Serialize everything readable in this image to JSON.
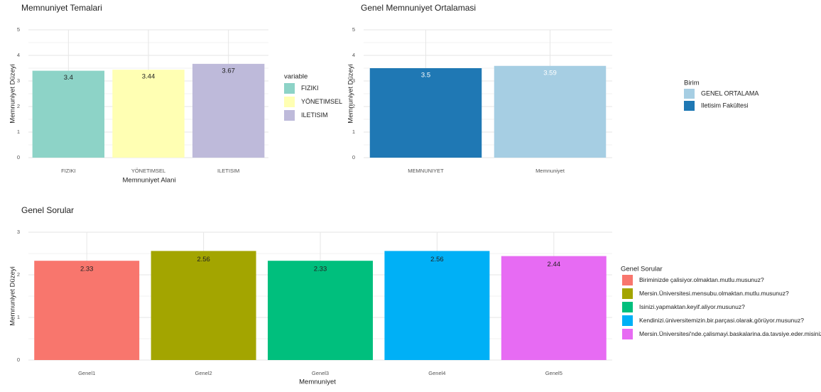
{
  "chart_data": [
    {
      "type": "bar",
      "title": "Memnuniyet Temalari",
      "xlabel": "Memnuniyet Alani",
      "ylabel": "Memnuniyet Düzeyi",
      "ylim": [
        0,
        5
      ],
      "yticks": [
        "0",
        "1",
        "2",
        "3",
        "4",
        "5"
      ],
      "grid": true,
      "categories": [
        "FIZIKI",
        "YÖNETIMSEL",
        "ILETISIM"
      ],
      "values": [
        3.4,
        3.44,
        3.67
      ],
      "value_labels": [
        "3.4",
        "3.44",
        "3.67"
      ],
      "colors": [
        "#8dd3c7",
        "#ffffb3",
        "#bebada"
      ],
      "label_colors": [
        "#222222",
        "#222222",
        "#222222"
      ],
      "legend": {
        "title": "variable",
        "placement": "right",
        "entries": [
          {
            "label": "FIZIKI",
            "color": "#8dd3c7"
          },
          {
            "label": "YÖNETIMSEL",
            "color": "#ffffb3"
          },
          {
            "label": "ILETISIM",
            "color": "#bebada"
          }
        ]
      }
    },
    {
      "type": "bar",
      "title": "Genel Memnuniyet Ortalamasi",
      "xlabel": "",
      "ylabel": "Memnuniyet Düzeyi",
      "ylim": [
        0,
        5
      ],
      "yticks": [
        "0",
        "1",
        "2",
        "3",
        "4",
        "5"
      ],
      "grid": true,
      "categories": [
        "MEMNUNIYET",
        "Memnuniyet"
      ],
      "values": [
        3.5,
        3.59
      ],
      "value_labels": [
        "3.5",
        "3.59"
      ],
      "colors": [
        "#1f78b4",
        "#a6cee3"
      ],
      "label_colors": [
        "#ffffff",
        "#ffffff"
      ],
      "legend": {
        "title": "Birim",
        "placement": "right",
        "entries": [
          {
            "label": "GENEL ORTALAMA",
            "color": "#a6cee3"
          },
          {
            "label": "Iletisim Fakültesi",
            "color": "#1f78b4"
          }
        ]
      }
    },
    {
      "type": "bar",
      "title": "Genel Sorular",
      "xlabel": "Memnuniyet",
      "ylabel": "Memnuniyet Düzeyi",
      "ylim": [
        0,
        3
      ],
      "yticks": [
        "0",
        "1",
        "2",
        "3"
      ],
      "grid": true,
      "categories": [
        "Genel1",
        "Genel2",
        "Genel3",
        "Genel4",
        "Genel5"
      ],
      "values": [
        2.33,
        2.56,
        2.33,
        2.56,
        2.44
      ],
      "value_labels": [
        "2.33",
        "2.56",
        "2.33",
        "2.56",
        "2.44"
      ],
      "colors": [
        "#f8766d",
        "#a3a500",
        "#00bf7d",
        "#00b0f6",
        "#e76bf3"
      ],
      "label_colors": [
        "#222222",
        "#222222",
        "#222222",
        "#222222",
        "#222222"
      ],
      "legend": {
        "title": "Genel Sorular",
        "placement": "right",
        "entries": [
          {
            "label": "Biriminizde çalisiyor.olmaktan.mutlu.musunuz?",
            "color": "#f8766d"
          },
          {
            "label": "Mersin.Üniversitesi.mensubu.olmaktan.mutlu.musunuz?",
            "color": "#a3a500"
          },
          {
            "label": "Isinizi.yapmaktan.keyif.aliyor.musunuz?",
            "color": "#00bf7d"
          },
          {
            "label": "Kendinizi.üniversitemizin.bir.parçasi.olarak.görüyor.musunuz?",
            "color": "#00b0f6"
          },
          {
            "label": "Mersin.Üniversitesi'nde.çalismayi.baskalarina.da.tavsiye.eder.misiniz?",
            "color": "#e76bf3"
          }
        ]
      }
    }
  ]
}
